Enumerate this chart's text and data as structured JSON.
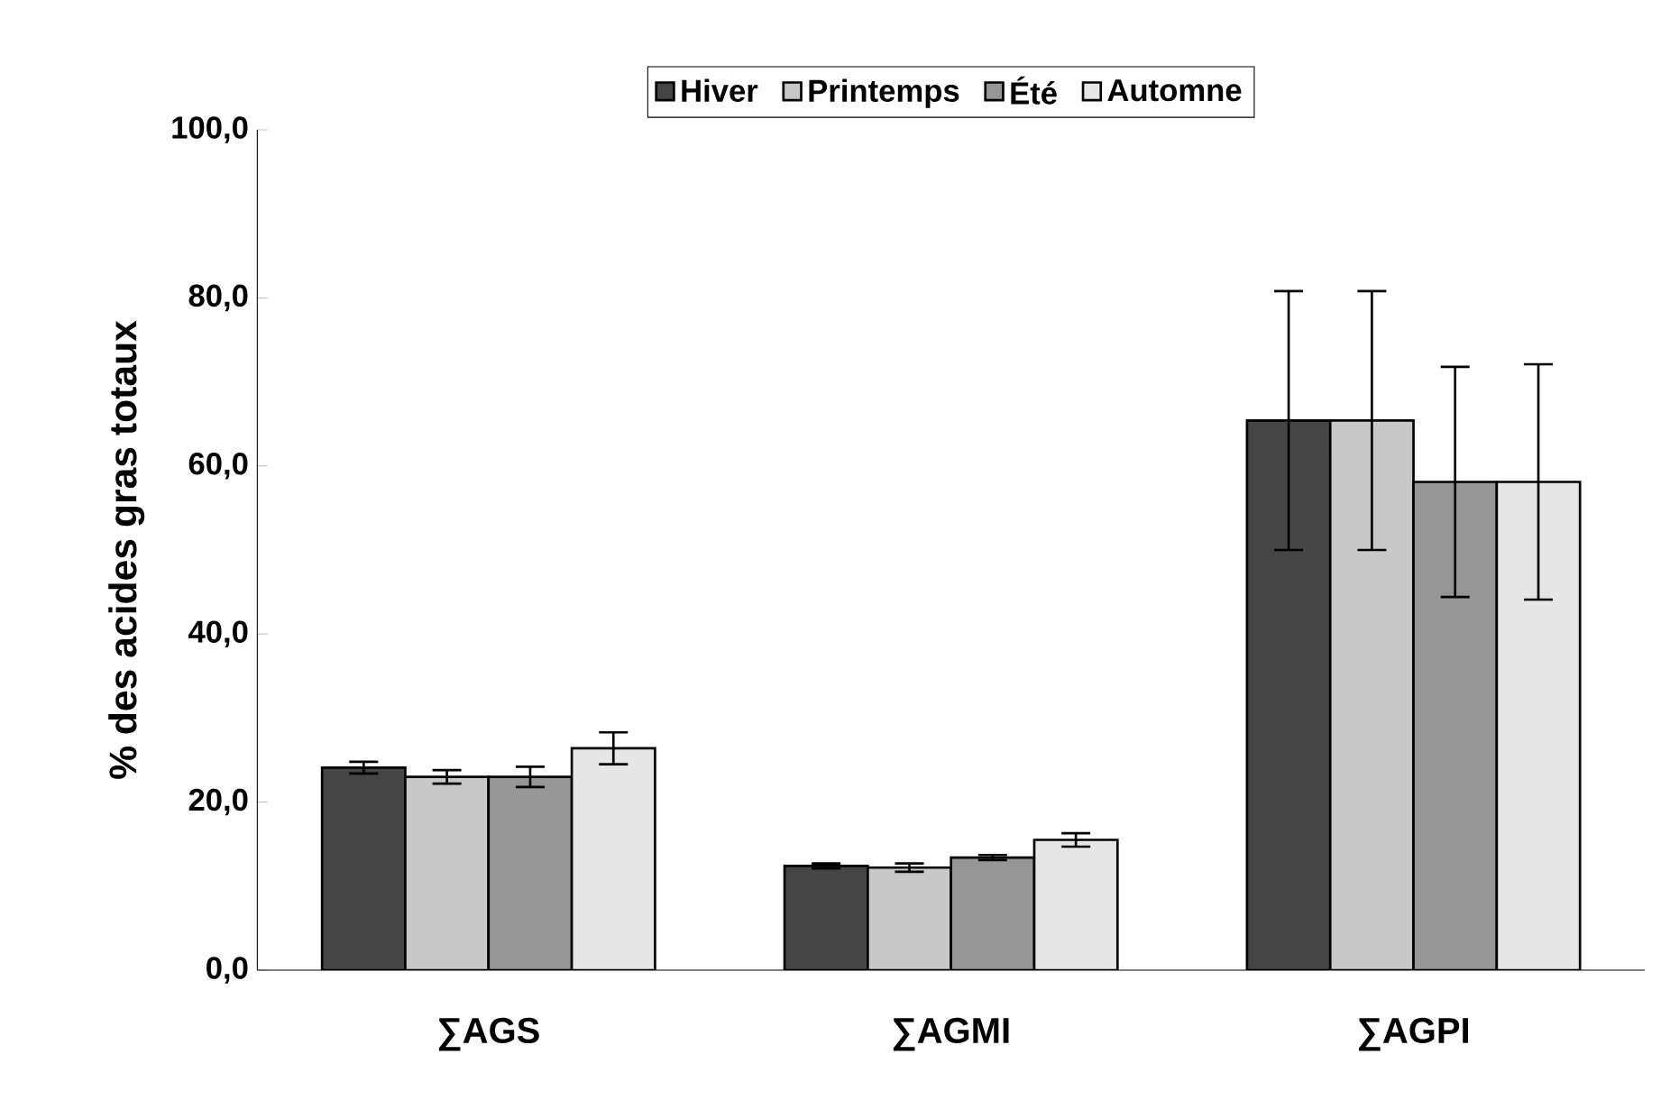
{
  "chart_data": {
    "type": "bar",
    "ylabel": "% des acides gras totaux",
    "categories": [
      "∑AGS",
      "∑AGMI",
      "∑AGPI"
    ],
    "series": [
      {
        "name": "Hiver",
        "color": "#454545",
        "values": [
          24.1,
          12.4,
          65.4
        ],
        "errors": [
          0.7,
          0.3,
          15.4
        ]
      },
      {
        "name": "Printemps",
        "color": "#c8c8c8",
        "values": [
          23.0,
          12.2,
          65.4
        ],
        "errors": [
          0.8,
          0.5,
          15.4
        ]
      },
      {
        "name": "Été",
        "color": "#969696",
        "values": [
          23.0,
          13.4,
          58.1
        ],
        "errors": [
          1.2,
          0.3,
          13.7
        ]
      },
      {
        "name": "Automne",
        "color": "#e6e6e6",
        "values": [
          26.4,
          15.5,
          58.1
        ],
        "errors": [
          1.9,
          0.8,
          14.0
        ]
      }
    ],
    "ylim": [
      0,
      100
    ],
    "yticks": [
      {
        "value": 0,
        "label": "0,0"
      },
      {
        "value": 20,
        "label": "20,0"
      },
      {
        "value": 40,
        "label": "40,0"
      },
      {
        "value": 60,
        "label": "60,0"
      },
      {
        "value": 80,
        "label": "80,0"
      },
      {
        "value": 100,
        "label": "100,0"
      }
    ],
    "legend": "top"
  }
}
